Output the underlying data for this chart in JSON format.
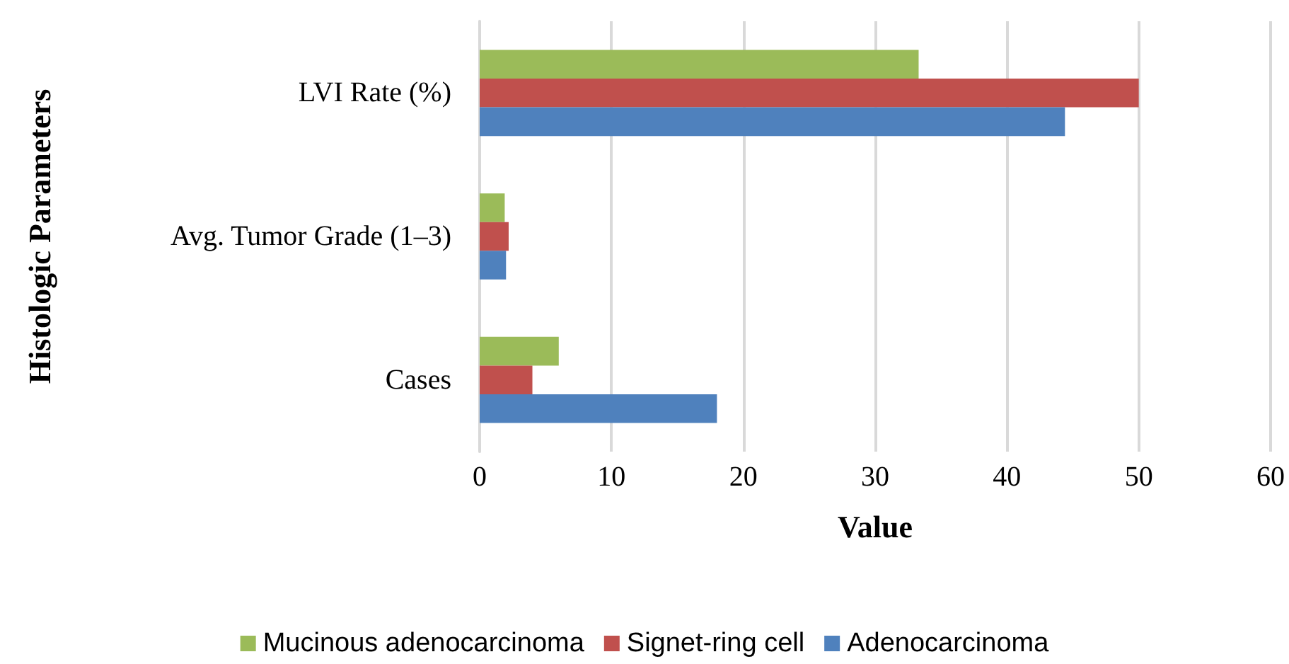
{
  "chart_data": {
    "type": "bar",
    "orientation": "horizontal",
    "xlabel": "Value",
    "ylabel": "Histologic Parameters",
    "categories": [
      "LVI Rate (%)",
      "Avg. Tumor Grade (1–3)",
      "Cases"
    ],
    "series": [
      {
        "name": "Mucinous adenocarcinoma",
        "color": "#9bbb59",
        "values": [
          33.3,
          1.9,
          6
        ]
      },
      {
        "name": "Signet-ring cell",
        "color": "#c0504d",
        "values": [
          50,
          2.2,
          4
        ]
      },
      {
        "name": "Adenocarcinoma",
        "color": "#4f81bd",
        "values": [
          44.4,
          2.0,
          18
        ]
      }
    ],
    "xlim": [
      0,
      60
    ],
    "xticks": [
      0,
      10,
      20,
      30,
      40,
      50,
      60
    ],
    "grid": "x",
    "legend": "bottom"
  }
}
